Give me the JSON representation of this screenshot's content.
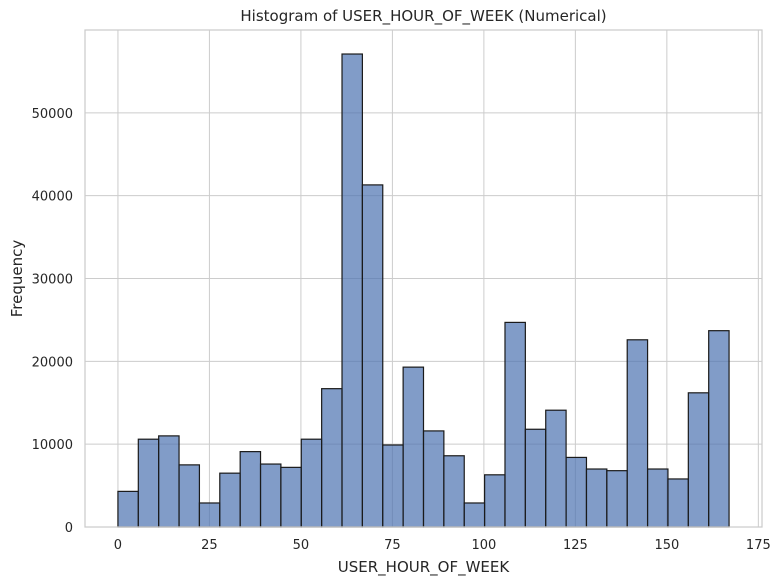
{
  "chart_data": {
    "type": "bar",
    "title": "Histogram of USER_HOUR_OF_WEEK (Numerical)",
    "xlabel": "USER_HOUR_OF_WEEK",
    "ylabel": "Frequency",
    "xlim": [
      -9,
      176
    ],
    "ylim": [
      0,
      60000
    ],
    "xticks": [
      0,
      25,
      50,
      75,
      100,
      125,
      150,
      175
    ],
    "yticks": [
      0,
      10000,
      20000,
      30000,
      40000,
      50000
    ],
    "grid": true,
    "bar_color": "#4c72b0",
    "bins": [
      {
        "x0": 0.0,
        "x1": 5.567,
        "value": 4300
      },
      {
        "x0": 5.567,
        "x1": 11.133,
        "value": 10600
      },
      {
        "x0": 11.133,
        "x1": 16.7,
        "value": 11000
      },
      {
        "x0": 16.7,
        "x1": 22.267,
        "value": 7500
      },
      {
        "x0": 22.267,
        "x1": 27.833,
        "value": 2900
      },
      {
        "x0": 27.833,
        "x1": 33.4,
        "value": 6500
      },
      {
        "x0": 33.4,
        "x1": 38.967,
        "value": 9100
      },
      {
        "x0": 38.967,
        "x1": 44.533,
        "value": 7600
      },
      {
        "x0": 44.533,
        "x1": 50.1,
        "value": 7200
      },
      {
        "x0": 50.1,
        "x1": 55.667,
        "value": 10600
      },
      {
        "x0": 55.667,
        "x1": 61.233,
        "value": 16700
      },
      {
        "x0": 61.233,
        "x1": 66.8,
        "value": 57100
      },
      {
        "x0": 66.8,
        "x1": 72.367,
        "value": 41300
      },
      {
        "x0": 72.367,
        "x1": 77.933,
        "value": 9900
      },
      {
        "x0": 77.933,
        "x1": 83.5,
        "value": 19300
      },
      {
        "x0": 83.5,
        "x1": 89.067,
        "value": 11600
      },
      {
        "x0": 89.067,
        "x1": 94.633,
        "value": 8600
      },
      {
        "x0": 94.633,
        "x1": 100.2,
        "value": 2900
      },
      {
        "x0": 100.2,
        "x1": 105.767,
        "value": 6300
      },
      {
        "x0": 105.767,
        "x1": 111.333,
        "value": 24700
      },
      {
        "x0": 111.333,
        "x1": 116.9,
        "value": 11800
      },
      {
        "x0": 116.9,
        "x1": 122.467,
        "value": 14100
      },
      {
        "x0": 122.467,
        "x1": 128.033,
        "value": 8400
      },
      {
        "x0": 128.033,
        "x1": 133.6,
        "value": 7000
      },
      {
        "x0": 133.6,
        "x1": 139.167,
        "value": 6800
      },
      {
        "x0": 139.167,
        "x1": 144.733,
        "value": 22600
      },
      {
        "x0": 144.733,
        "x1": 150.3,
        "value": 7000
      },
      {
        "x0": 150.3,
        "x1": 155.867,
        "value": 5800
      },
      {
        "x0": 155.867,
        "x1": 161.433,
        "value": 16200
      },
      {
        "x0": 161.433,
        "x1": 167.0,
        "value": 23700
      }
    ]
  }
}
